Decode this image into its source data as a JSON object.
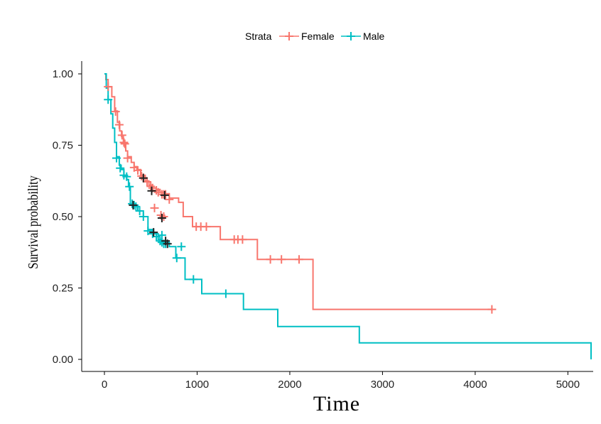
{
  "chart_data": {
    "type": "line",
    "subtype": "kaplan-meier survival curve",
    "xlabel": "Time",
    "ylabel": "Survival probability",
    "xlim": [
      0,
      5250
    ],
    "ylim": [
      0,
      1
    ],
    "x_ticks": [
      0,
      1000,
      2000,
      3000,
      4000,
      5000
    ],
    "y_ticks": [
      0.0,
      0.25,
      0.5,
      0.75,
      1.0
    ],
    "x_tick_labels": [
      "0",
      "1000",
      "2000",
      "3000",
      "4000",
      "5000"
    ],
    "y_tick_labels": [
      "0.00",
      "0.25",
      "0.50",
      "0.75",
      "1.00"
    ],
    "grid": false,
    "legend": {
      "title": "Strata",
      "placement": "top",
      "entries": [
        "Female",
        "Male"
      ]
    },
    "series": [
      {
        "name": "Female",
        "color": "#F8766D",
        "steps": [
          [
            0,
            1.0
          ],
          [
            15,
            0.98
          ],
          [
            40,
            0.955
          ],
          [
            80,
            0.92
          ],
          [
            110,
            0.87
          ],
          [
            140,
            0.83
          ],
          [
            165,
            0.8
          ],
          [
            185,
            0.78
          ],
          [
            205,
            0.76
          ],
          [
            230,
            0.73
          ],
          [
            250,
            0.71
          ],
          [
            290,
            0.69
          ],
          [
            320,
            0.675
          ],
          [
            350,
            0.665
          ],
          [
            390,
            0.645
          ],
          [
            440,
            0.625
          ],
          [
            480,
            0.61
          ],
          [
            520,
            0.6
          ],
          [
            560,
            0.595
          ],
          [
            600,
            0.585
          ],
          [
            650,
            0.58
          ],
          [
            700,
            0.565
          ],
          [
            800,
            0.55
          ],
          [
            850,
            0.5
          ],
          [
            950,
            0.465
          ],
          [
            1250,
            0.42
          ],
          [
            1650,
            0.35
          ],
          [
            2250,
            0.175
          ],
          [
            4180,
            0.175
          ]
        ],
        "censors": [
          [
            40,
            0.955
          ],
          [
            120,
            0.868
          ],
          [
            160,
            0.822
          ],
          [
            190,
            0.785
          ],
          [
            210,
            0.76
          ],
          [
            220,
            0.755
          ],
          [
            250,
            0.705
          ],
          [
            320,
            0.672
          ],
          [
            360,
            0.662
          ],
          [
            400,
            0.642
          ],
          [
            420,
            0.636
          ],
          [
            460,
            0.622
          ],
          [
            500,
            0.606
          ],
          [
            520,
            0.6
          ],
          [
            560,
            0.592
          ],
          [
            580,
            0.585
          ],
          [
            620,
            0.578
          ],
          [
            640,
            0.578
          ],
          [
            660,
            0.578
          ],
          [
            700,
            0.56
          ],
          [
            540,
            0.53
          ],
          [
            610,
            0.505
          ],
          [
            640,
            0.5
          ],
          [
            990,
            0.465
          ],
          [
            1040,
            0.465
          ],
          [
            1100,
            0.465
          ],
          [
            1400,
            0.42
          ],
          [
            1440,
            0.42
          ],
          [
            1490,
            0.42
          ],
          [
            1790,
            0.35
          ],
          [
            1910,
            0.35
          ],
          [
            2100,
            0.35
          ],
          [
            4180,
            0.175
          ]
        ]
      },
      {
        "name": "Male",
        "color": "#00BFC4",
        "steps": [
          [
            0,
            1.0
          ],
          [
            20,
            0.95
          ],
          [
            40,
            0.91
          ],
          [
            70,
            0.86
          ],
          [
            90,
            0.81
          ],
          [
            110,
            0.76
          ],
          [
            130,
            0.71
          ],
          [
            160,
            0.68
          ],
          [
            180,
            0.665
          ],
          [
            210,
            0.645
          ],
          [
            240,
            0.63
          ],
          [
            260,
            0.605
          ],
          [
            280,
            0.545
          ],
          [
            320,
            0.54
          ],
          [
            360,
            0.52
          ],
          [
            420,
            0.5
          ],
          [
            470,
            0.455
          ],
          [
            530,
            0.44
          ],
          [
            580,
            0.42
          ],
          [
            620,
            0.41
          ],
          [
            700,
            0.395
          ],
          [
            770,
            0.355
          ],
          [
            870,
            0.315
          ],
          [
            870,
            0.28
          ],
          [
            1050,
            0.23
          ],
          [
            1500,
            0.175
          ],
          [
            1870,
            0.115
          ],
          [
            2750,
            0.058
          ],
          [
            5250,
            0.058
          ]
        ],
        "censors": [
          [
            40,
            0.91
          ],
          [
            130,
            0.705
          ],
          [
            170,
            0.67
          ],
          [
            210,
            0.645
          ],
          [
            240,
            0.64
          ],
          [
            270,
            0.605
          ],
          [
            300,
            0.545
          ],
          [
            320,
            0.54
          ],
          [
            340,
            0.535
          ],
          [
            380,
            0.52
          ],
          [
            420,
            0.5
          ],
          [
            470,
            0.45
          ],
          [
            520,
            0.44
          ],
          [
            560,
            0.43
          ],
          [
            600,
            0.415
          ],
          [
            620,
            0.41
          ],
          [
            640,
            0.405
          ],
          [
            660,
            0.405
          ],
          [
            620,
            0.435
          ],
          [
            830,
            0.395
          ],
          [
            780,
            0.355
          ],
          [
            960,
            0.28
          ],
          [
            1310,
            0.23
          ]
        ]
      }
    ],
    "dark_censors": [
      [
        310,
        0.54
      ],
      [
        420,
        0.635
      ],
      [
        510,
        0.59
      ],
      [
        530,
        0.445
      ],
      [
        620,
        0.495
      ],
      [
        650,
        0.575
      ],
      [
        660,
        0.415
      ],
      [
        680,
        0.405
      ]
    ]
  }
}
